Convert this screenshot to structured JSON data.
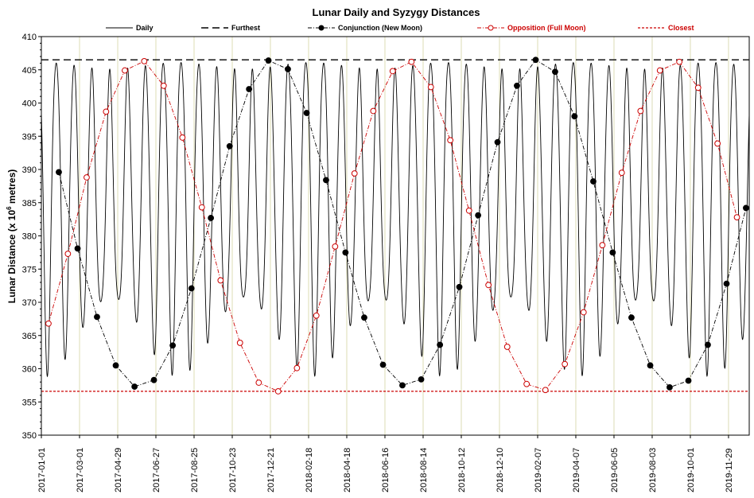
{
  "chart_data": {
    "type": "line",
    "title": "Lunar Daily and Syzygy Distances",
    "ylabel_main": "Lunar Distance (x 10",
    "ylabel_sup": "6",
    "ylabel_end": " metres)",
    "xlabel": "",
    "ylim": [
      350,
      410
    ],
    "y_ticks": [
      "350",
      "355",
      "360",
      "365",
      "370",
      "375",
      "380",
      "385",
      "390",
      "395",
      "400",
      "405",
      "410"
    ],
    "xlim": [
      "2017-01-01",
      "2019-12-31"
    ],
    "x_ticks": [
      "2017-01-01",
      "2017-03-01",
      "2017-04-29",
      "2017-06-27",
      "2017-08-25",
      "2017-10-23",
      "2017-12-21",
      "2018-02-18",
      "2018-04-18",
      "2018-06-16",
      "2018-08-14",
      "2018-10-12",
      "2018-12-10",
      "2019-02-07",
      "2019-04-07",
      "2019-06-05",
      "2019-08-03",
      "2019-10-01",
      "2019-11-29"
    ],
    "grid": "vertical",
    "legend_position": "top",
    "series": [
      {
        "name": "Daily",
        "style": "solid",
        "color": "#000000",
        "note": "daily Earth-Moon distance oscillating between perigee (~357-370) and apogee (~404-406) with an anomalistic period of about 27.55 days"
      },
      {
        "name": "Furthest",
        "style": "dashed",
        "color": "#000000",
        "value": 406.5
      },
      {
        "name": "Conjunction (New Moon)",
        "style": "dash-dot",
        "marker": "filled-circle",
        "color": "#000000",
        "x": [
          "2017-01-28",
          "2017-02-26",
          "2017-03-28",
          "2017-04-26",
          "2017-05-25",
          "2017-06-24",
          "2017-07-23",
          "2017-08-21",
          "2017-09-20",
          "2017-10-19",
          "2017-11-18",
          "2017-12-18",
          "2018-01-17",
          "2018-02-15",
          "2018-03-17",
          "2018-04-16",
          "2018-05-15",
          "2018-06-13",
          "2018-07-13",
          "2018-08-11",
          "2018-09-09",
          "2018-10-09",
          "2018-11-07",
          "2018-12-07",
          "2019-01-06",
          "2019-02-04",
          "2019-03-06",
          "2019-04-05",
          "2019-05-04",
          "2019-06-03",
          "2019-07-02",
          "2019-07-31",
          "2019-08-30",
          "2019-09-28",
          "2019-10-28",
          "2019-11-26",
          "2019-12-26"
        ],
        "values": [
          389.6,
          378.1,
          367.8,
          360.5,
          357.3,
          358.3,
          363.5,
          372.1,
          382.7,
          393.5,
          402.1,
          406.4,
          405.1,
          398.5,
          388.4,
          377.5,
          367.7,
          360.6,
          357.5,
          358.4,
          363.6,
          372.3,
          383.1,
          394.1,
          402.6,
          406.5,
          404.7,
          398.0,
          388.2,
          377.5,
          367.7,
          360.5,
          357.2,
          358.2,
          363.6,
          372.8,
          384.2
        ]
      },
      {
        "name": "Opposition (Full Moon)",
        "style": "dash-dot",
        "marker": "open-circle",
        "color": "#cc0000",
        "x": [
          "2017-01-12",
          "2017-02-11",
          "2017-03-12",
          "2017-04-11",
          "2017-05-10",
          "2017-06-09",
          "2017-07-09",
          "2017-08-07",
          "2017-09-06",
          "2017-10-05",
          "2017-11-04",
          "2017-12-03",
          "2018-01-02",
          "2018-01-31",
          "2018-03-02",
          "2018-03-31",
          "2018-04-30",
          "2018-05-29",
          "2018-06-28",
          "2018-07-27",
          "2018-08-26",
          "2018-09-25",
          "2018-10-24",
          "2018-11-23",
          "2018-12-22",
          "2019-01-21",
          "2019-02-19",
          "2019-03-21",
          "2019-04-19",
          "2019-05-18",
          "2019-06-17",
          "2019-07-16",
          "2019-08-15",
          "2019-09-14",
          "2019-10-13",
          "2019-11-12",
          "2019-12-12"
        ],
        "values": [
          366.8,
          377.3,
          388.8,
          398.7,
          404.9,
          406.3,
          402.6,
          394.8,
          384.3,
          373.3,
          363.9,
          357.9,
          356.6,
          360.1,
          368.0,
          378.4,
          389.4,
          398.8,
          404.8,
          406.2,
          402.4,
          394.4,
          383.8,
          372.6,
          363.3,
          357.7,
          356.8,
          360.7,
          368.5,
          378.6,
          389.5,
          398.8,
          404.9,
          406.2,
          402.3,
          393.9,
          382.8
        ]
      },
      {
        "name": "Closest",
        "style": "dotted",
        "color": "#cc0000",
        "value": 356.6
      }
    ]
  }
}
